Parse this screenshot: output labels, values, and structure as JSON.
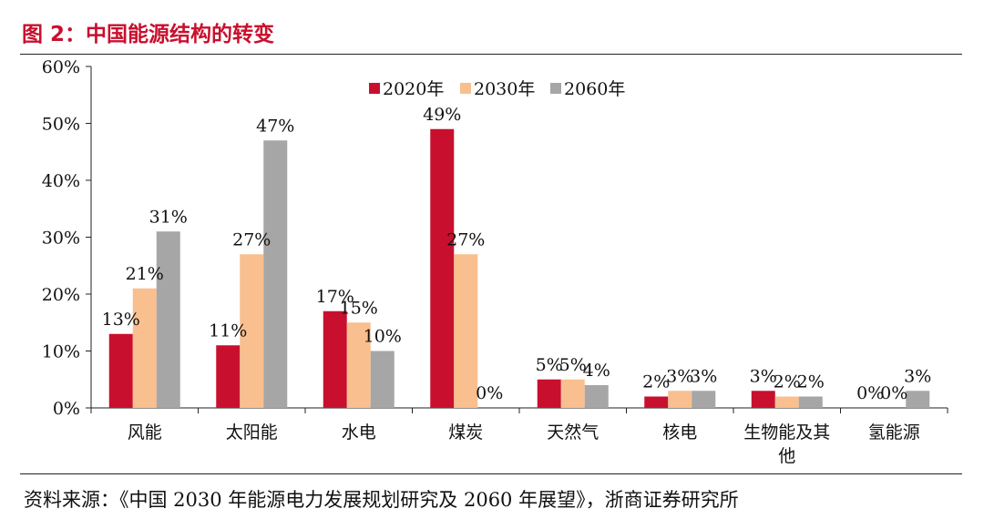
{
  "figure_title": "图 2：中国能源结构的转变",
  "source_note": "资料来源：《中国 2030 年能源电力发展规划研究及 2060 年展望》，浙商证券研究所",
  "chart_data": {
    "type": "bar",
    "categories": [
      "风能",
      "太阳能",
      "水电",
      "煤炭",
      "天然气",
      "核电",
      "生物能及其他",
      "氢能源"
    ],
    "category_lines": [
      [
        "风能"
      ],
      [
        "太阳能"
      ],
      [
        "水电"
      ],
      [
        "煤炭"
      ],
      [
        "天然气"
      ],
      [
        "核电"
      ],
      [
        "生物能及其",
        "他"
      ],
      [
        "氢能源"
      ]
    ],
    "series": [
      {
        "name": "2020年",
        "values": [
          13,
          11,
          17,
          49,
          5,
          2,
          3,
          0
        ],
        "color": "#c8102e"
      },
      {
        "name": "2030年",
        "values": [
          21,
          27,
          15,
          27,
          5,
          3,
          2,
          0
        ],
        "color": "#f9bf8f"
      },
      {
        "name": "2060年",
        "values": [
          31,
          47,
          10,
          0,
          4,
          3,
          2,
          3
        ],
        "color": "#a6a6a6"
      }
    ],
    "data_labels": [
      [
        "13%",
        "11%",
        "17%",
        "49%",
        "5%",
        "2%",
        "3%",
        "0%"
      ],
      [
        "21%",
        "27%",
        "15%",
        "27%",
        "5%",
        "3%",
        "2%",
        "0%"
      ],
      [
        "31%",
        "47%",
        "10%",
        "0%",
        "4%",
        "3%",
        "2%",
        "3%"
      ]
    ],
    "ylim": [
      0,
      60
    ],
    "yticks": [
      0,
      10,
      20,
      30,
      40,
      50,
      60
    ],
    "ytick_labels": [
      "0%",
      "10%",
      "20%",
      "30%",
      "40%",
      "50%",
      "60%"
    ],
    "legend_position": "top-center",
    "grid": false,
    "xlabel": "",
    "ylabel": ""
  }
}
